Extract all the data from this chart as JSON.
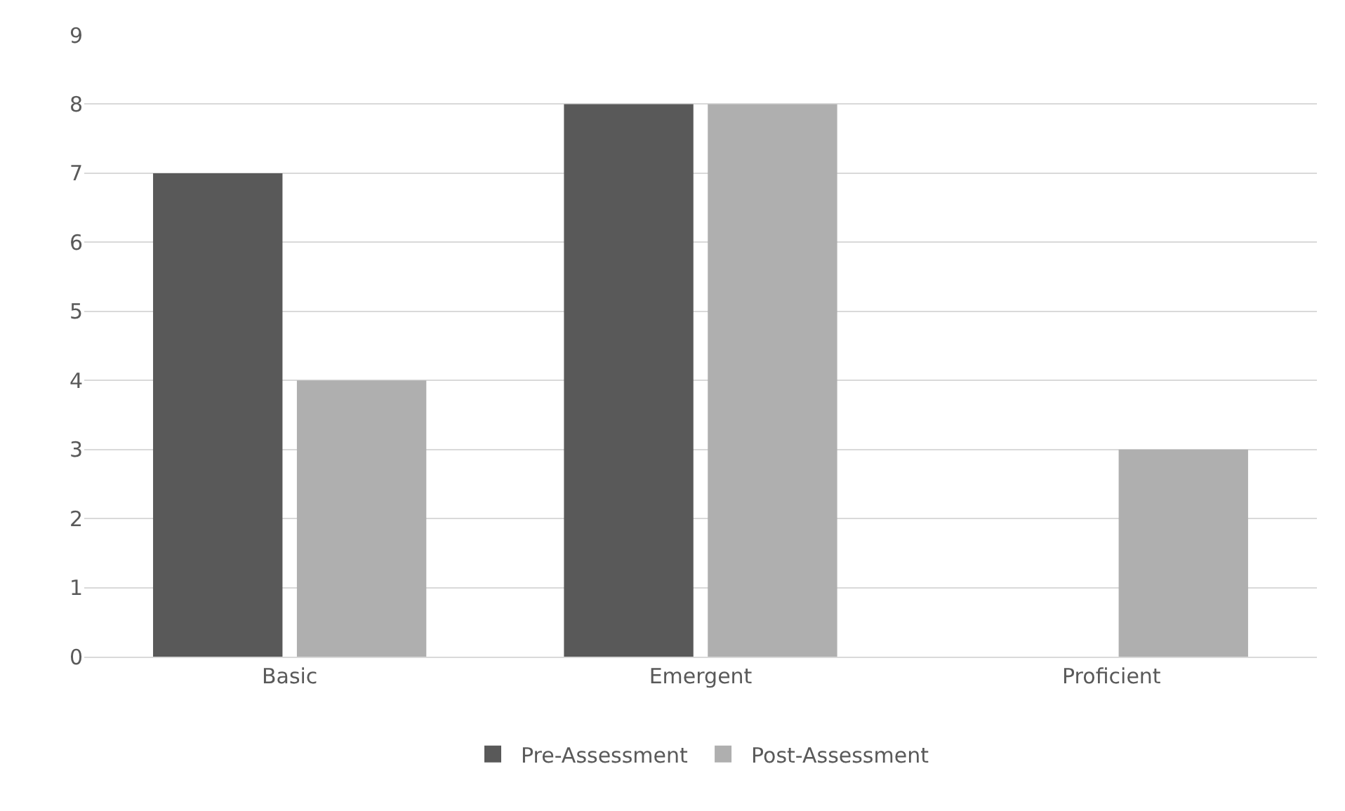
{
  "chart_data": {
    "type": "bar",
    "categories": [
      "Basic",
      "Emergent",
      "Proficient"
    ],
    "series": [
      {
        "name": "Pre-Assessment",
        "color": "#595959",
        "values": [
          7,
          8,
          0
        ]
      },
      {
        "name": "Post-Assessment",
        "color": "#afafaf",
        "values": [
          4,
          8,
          3
        ]
      }
    ],
    "ylim": [
      0,
      9
    ],
    "yticks": [
      0,
      1,
      2,
      3,
      4,
      5,
      6,
      7,
      8,
      9
    ],
    "grid": "y",
    "legend": "bottom"
  }
}
